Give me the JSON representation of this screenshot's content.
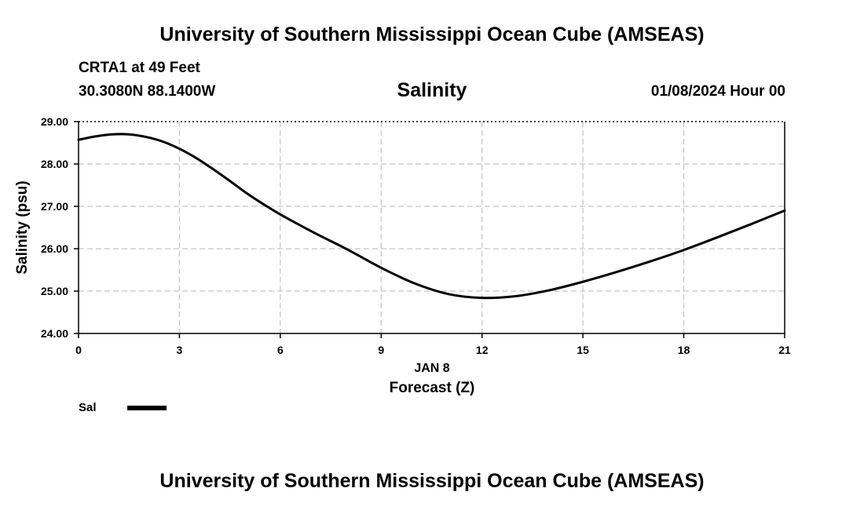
{
  "header": {
    "title": "University of Southern Mississippi Ocean Cube (AMSEAS)",
    "station": "CRTA1 at 49 Feet",
    "coords": "30.3080N  88.1400W",
    "variable": "Salinity",
    "datetime": "01/08/2024 Hour 00"
  },
  "footer": {
    "title": "University of Southern Mississippi Ocean Cube (AMSEAS)"
  },
  "legend": {
    "label": "Sal"
  },
  "chart_data": {
    "type": "line",
    "title": "Salinity",
    "ylabel": "Salinity (psu)",
    "xlabel": "Forecast (Z)",
    "x_date_label": "JAN 8",
    "xlim": [
      0,
      21
    ],
    "ylim": [
      24.0,
      29.0
    ],
    "xticks": [
      0,
      3,
      6,
      9,
      12,
      15,
      18,
      21
    ],
    "xtick_labels": [
      "0",
      "3",
      "6",
      "9",
      "12",
      "15",
      "18",
      "21"
    ],
    "yticks": [
      24,
      25,
      26,
      27,
      28,
      29
    ],
    "ytick_labels": [
      "24.00",
      "25.00",
      "26.00",
      "27.00",
      "28.00",
      "29.00"
    ],
    "grid": true,
    "series": [
      {
        "name": "Sal",
        "color": "#000000",
        "x": [
          0,
          0.5,
          1,
          1.5,
          2,
          2.5,
          3,
          3.5,
          4,
          4.5,
          5,
          5.5,
          6,
          7,
          8,
          9,
          10,
          11,
          12,
          13,
          14,
          15,
          16,
          17,
          18,
          19,
          20,
          21
        ],
        "y": [
          28.57,
          28.65,
          28.7,
          28.7,
          28.64,
          28.53,
          28.36,
          28.14,
          27.88,
          27.6,
          27.31,
          27.05,
          26.81,
          26.38,
          25.98,
          25.55,
          25.18,
          24.93,
          24.84,
          24.88,
          25.02,
          25.22,
          25.45,
          25.7,
          25.97,
          26.27,
          26.58,
          26.9
        ]
      }
    ]
  }
}
